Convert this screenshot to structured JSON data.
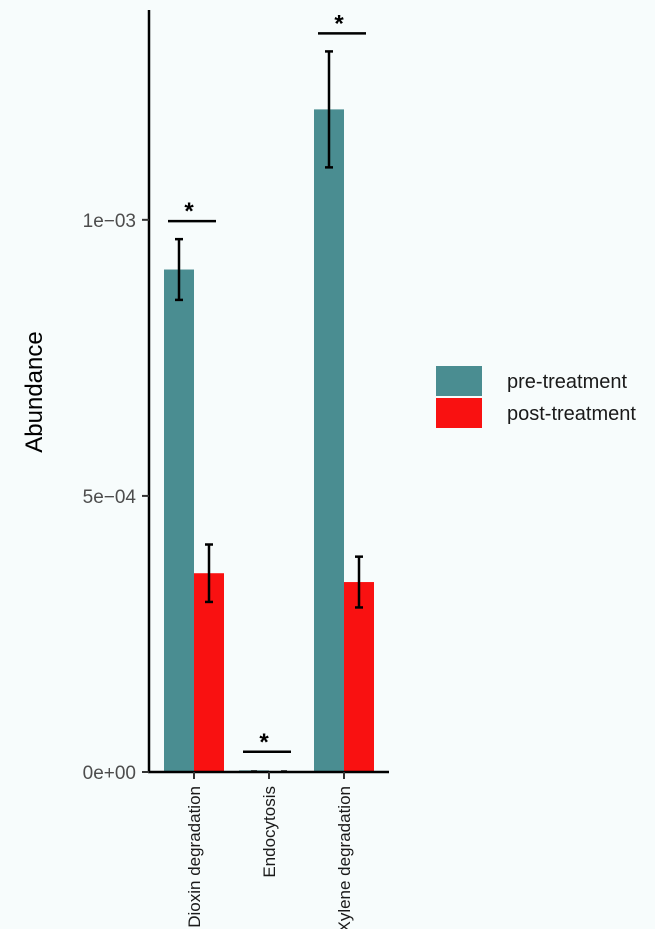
{
  "chart_data": {
    "type": "bar",
    "title": "",
    "xlabel": "",
    "ylabel": "Abundance",
    "ylim": [
      0,
      0.00138
    ],
    "yticks": [
      {
        "value": 0,
        "label": "0e+00"
      },
      {
        "value": 0.0005,
        "label": "5e-04"
      },
      {
        "value": 0.001,
        "label": "1e-03"
      }
    ],
    "categories": [
      "Dioxin degradation",
      "Endocytosis",
      "Xylene degradation"
    ],
    "series": [
      {
        "name": "pre-treatment",
        "color": "#4a8d91",
        "values": [
          0.00091,
          3e-06,
          0.0012
        ],
        "error": [
          5.5e-05,
          1e-06,
          0.000105
        ]
      },
      {
        "name": "post-treatment",
        "color": "#f91111",
        "values": [
          0.00036,
          5e-07,
          0.000344
        ],
        "error": [
          5.2e-05,
          5e-07,
          4.6e-05
        ]
      }
    ],
    "significance": [
      {
        "category": "Dioxin degradation",
        "label": "*"
      },
      {
        "category": "Endocytosis",
        "label": "*"
      },
      {
        "category": "Xylene degradation",
        "label": "*"
      }
    ],
    "legend_position": "right",
    "grid": false
  }
}
